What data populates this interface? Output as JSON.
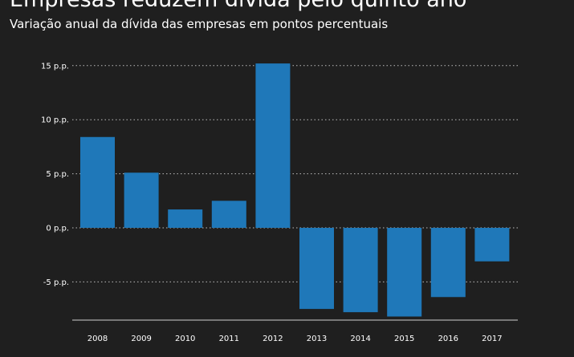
{
  "title": "Empresas reduzem dívida pelo quinto ano",
  "subtitle": "Variação anual da dívida das empresas em pontos percentuais",
  "colors": {
    "bar": "#1f78b9",
    "background": "#1f1f1f",
    "text": "#ffffff",
    "grid": "#bdbdbd"
  },
  "chart_data": {
    "type": "bar",
    "title": "Empresas reduzem dívida pelo quinto ano",
    "subtitle": "Variação anual da dívida das empresas em pontos percentuais",
    "categories": [
      "2008",
      "2009",
      "2010",
      "2011",
      "2012",
      "2013",
      "2014",
      "2015",
      "2016",
      "2017"
    ],
    "values": [
      8.4,
      5.1,
      1.7,
      2.5,
      15.2,
      -7.5,
      -7.8,
      -8.2,
      -6.4,
      -3.1
    ],
    "ylim": [
      -8.5,
      15.2
    ],
    "yticks": [
      15,
      10,
      5,
      0,
      -5
    ],
    "ytick_labels": [
      "15 p.p.",
      "10 p.p.",
      "5 p.p.",
      "0 p.p.",
      "-5 p.p."
    ],
    "grid": true,
    "xlabel": "",
    "ylabel": ""
  }
}
